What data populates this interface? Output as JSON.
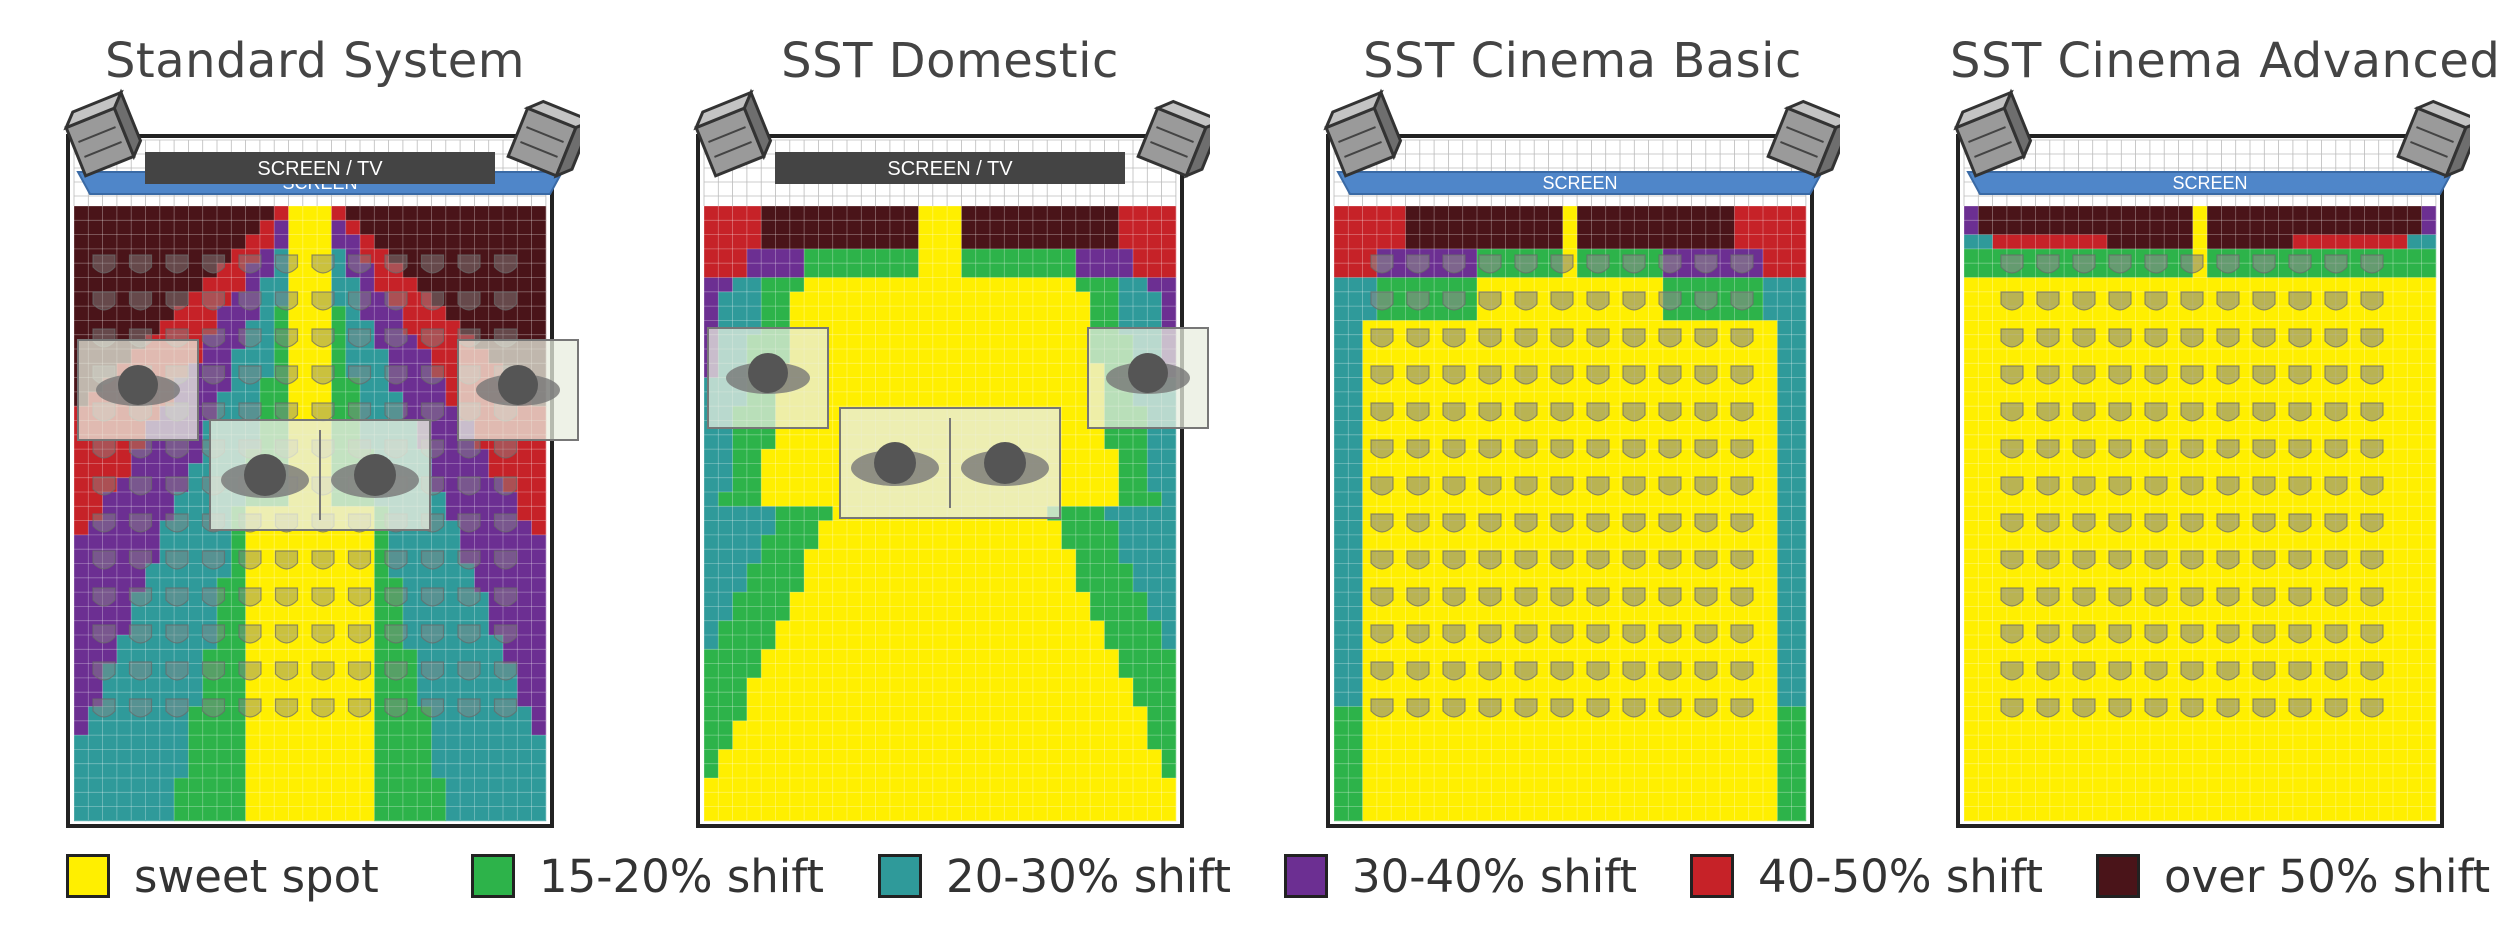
{
  "colors": {
    "sweet": "#ffef00",
    "s15": "#2db34a",
    "s20": "#2f9a9a",
    "s30": "#6c2f92",
    "s40": "#c62228",
    "s50": "#4a1419",
    "screen": "#4f86c9",
    "tv": "#444444",
    "speaker": "#8a8a8a"
  },
  "panels": [
    {
      "title": "Standard System",
      "screen_label": "SCREEN",
      "tv_label": "SCREEN / TV"
    },
    {
      "title": "SST Domestic",
      "tv_label": "SCREEN / TV"
    },
    {
      "title": "SST Cinema Basic",
      "screen_label": "SCREEN"
    },
    {
      "title": "SST Cinema Advanced",
      "screen_label": "SCREEN"
    }
  ],
  "legend": [
    {
      "key": "sweet",
      "label": "sweet spot"
    },
    {
      "key": "s15",
      "label": "15-20% shift"
    },
    {
      "key": "s20",
      "label": "20-30% shift"
    },
    {
      "key": "s30",
      "label": "30-40% shift"
    },
    {
      "key": "s40",
      "label": "40-50% shift"
    },
    {
      "key": "s50",
      "label": "over 50% shift"
    }
  ]
}
